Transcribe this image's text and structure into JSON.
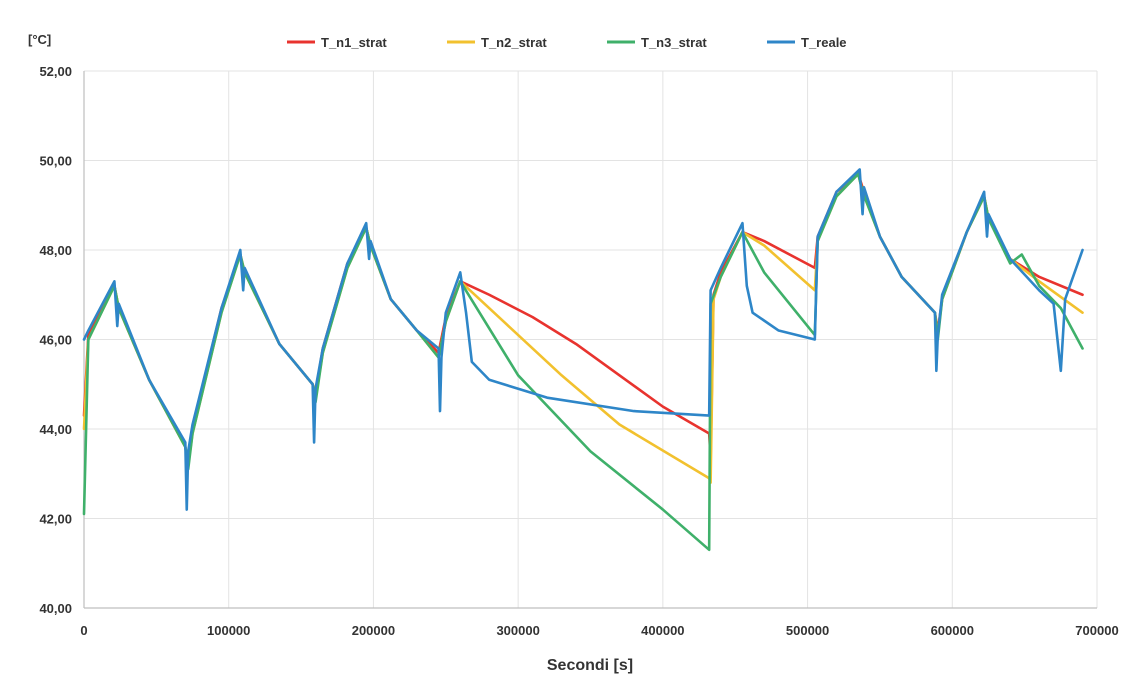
{
  "chart_data": {
    "type": "line",
    "ylabel": "[°C]",
    "xlabel": "Secondi [s]",
    "xlim": [
      0,
      700000
    ],
    "ylim": [
      40,
      52
    ],
    "x_ticks": [
      0,
      100000,
      200000,
      300000,
      400000,
      500000,
      600000,
      700000
    ],
    "x_tick_labels": [
      "0",
      "100000",
      "200000",
      "300000",
      "400000",
      "500000",
      "600000",
      "700000"
    ],
    "y_ticks": [
      40,
      42,
      44,
      46,
      48,
      50,
      52
    ],
    "y_tick_labels": [
      "40,00",
      "42,00",
      "44,00",
      "46,00",
      "48,00",
      "50,00",
      "52,00"
    ],
    "grid": true,
    "legend_position": "top",
    "series": [
      {
        "name": "T_n1_strat",
        "color": "#e8332e",
        "points": [
          [
            0,
            44.3
          ],
          [
            3000,
            46.1
          ],
          [
            21000,
            47.2
          ],
          [
            24000,
            46.7
          ],
          [
            45000,
            45.1
          ],
          [
            70000,
            43.6
          ],
          [
            72000,
            43.3
          ],
          [
            75000,
            44.0
          ],
          [
            95000,
            46.7
          ],
          [
            108000,
            47.9
          ],
          [
            111000,
            47.5
          ],
          [
            135000,
            45.9
          ],
          [
            158000,
            45.0
          ],
          [
            160000,
            44.8
          ],
          [
            165000,
            45.8
          ],
          [
            182000,
            47.7
          ],
          [
            195000,
            48.5
          ],
          [
            198000,
            48.1
          ],
          [
            212000,
            46.9
          ],
          [
            230000,
            46.2
          ],
          [
            245000,
            45.7
          ],
          [
            250000,
            46.5
          ],
          [
            260000,
            47.3
          ],
          [
            280000,
            47.0
          ],
          [
            310000,
            46.5
          ],
          [
            340000,
            45.9
          ],
          [
            370000,
            45.2
          ],
          [
            400000,
            44.5
          ],
          [
            432000,
            43.9
          ],
          [
            433000,
            43.3
          ],
          [
            435000,
            47.0
          ],
          [
            440000,
            47.5
          ],
          [
            455000,
            48.4
          ],
          [
            470000,
            48.2
          ],
          [
            505000,
            47.6
          ],
          [
            507000,
            48.3
          ],
          [
            520000,
            49.3
          ],
          [
            535000,
            49.7
          ],
          [
            538000,
            49.4
          ],
          [
            550000,
            48.3
          ],
          [
            565000,
            47.4
          ],
          [
            588000,
            46.6
          ],
          [
            590000,
            46.2
          ],
          [
            593000,
            46.9
          ],
          [
            610000,
            48.4
          ],
          [
            622000,
            49.2
          ],
          [
            625000,
            48.7
          ],
          [
            640000,
            47.8
          ],
          [
            660000,
            47.4
          ],
          [
            690000,
            47.0
          ]
        ]
      },
      {
        "name": "T_n2_strat",
        "color": "#f2c12e",
        "points": [
          [
            0,
            44.0
          ],
          [
            3000,
            46.0
          ],
          [
            21000,
            47.2
          ],
          [
            24000,
            46.7
          ],
          [
            45000,
            45.1
          ],
          [
            70000,
            43.6
          ],
          [
            72000,
            43.2
          ],
          [
            75000,
            43.9
          ],
          [
            95000,
            46.6
          ],
          [
            108000,
            47.9
          ],
          [
            111000,
            47.5
          ],
          [
            135000,
            45.9
          ],
          [
            158000,
            45.0
          ],
          [
            160000,
            44.7
          ],
          [
            165000,
            45.7
          ],
          [
            182000,
            47.6
          ],
          [
            195000,
            48.5
          ],
          [
            198000,
            48.1
          ],
          [
            212000,
            46.9
          ],
          [
            230000,
            46.2
          ],
          [
            245000,
            45.6
          ],
          [
            250000,
            46.4
          ],
          [
            260000,
            47.3
          ],
          [
            290000,
            46.4
          ],
          [
            330000,
            45.2
          ],
          [
            370000,
            44.1
          ],
          [
            432000,
            42.9
          ],
          [
            433000,
            42.8
          ],
          [
            435000,
            46.9
          ],
          [
            440000,
            47.4
          ],
          [
            455000,
            48.4
          ],
          [
            470000,
            48.1
          ],
          [
            505000,
            47.1
          ],
          [
            507000,
            48.2
          ],
          [
            520000,
            49.2
          ],
          [
            535000,
            49.7
          ],
          [
            538000,
            49.3
          ],
          [
            550000,
            48.3
          ],
          [
            565000,
            47.4
          ],
          [
            588000,
            46.6
          ],
          [
            590000,
            46.1
          ],
          [
            593000,
            46.9
          ],
          [
            610000,
            48.4
          ],
          [
            622000,
            49.2
          ],
          [
            625000,
            48.7
          ],
          [
            640000,
            47.8
          ],
          [
            660000,
            47.3
          ],
          [
            690000,
            46.6
          ]
        ]
      },
      {
        "name": "T_n3_strat",
        "color": "#3fb06a",
        "points": [
          [
            0,
            42.1
          ],
          [
            3000,
            46.0
          ],
          [
            21000,
            47.2
          ],
          [
            24000,
            46.7
          ],
          [
            45000,
            45.1
          ],
          [
            70000,
            43.6
          ],
          [
            72000,
            43.1
          ],
          [
            75000,
            43.9
          ],
          [
            95000,
            46.6
          ],
          [
            108000,
            47.9
          ],
          [
            111000,
            47.5
          ],
          [
            135000,
            45.9
          ],
          [
            158000,
            45.0
          ],
          [
            160000,
            44.6
          ],
          [
            165000,
            45.7
          ],
          [
            182000,
            47.6
          ],
          [
            195000,
            48.5
          ],
          [
            198000,
            48.1
          ],
          [
            212000,
            46.9
          ],
          [
            230000,
            46.2
          ],
          [
            245000,
            45.6
          ],
          [
            250000,
            46.4
          ],
          [
            260000,
            47.3
          ],
          [
            300000,
            45.2
          ],
          [
            350000,
            43.5
          ],
          [
            400000,
            42.2
          ],
          [
            432000,
            41.3
          ],
          [
            433000,
            46.8
          ],
          [
            440000,
            47.4
          ],
          [
            455000,
            48.4
          ],
          [
            470000,
            47.5
          ],
          [
            505000,
            46.1
          ],
          [
            507000,
            48.2
          ],
          [
            520000,
            49.2
          ],
          [
            535000,
            49.7
          ],
          [
            538000,
            49.3
          ],
          [
            550000,
            48.3
          ],
          [
            565000,
            47.4
          ],
          [
            588000,
            46.6
          ],
          [
            590000,
            46.0
          ],
          [
            593000,
            46.9
          ],
          [
            610000,
            48.4
          ],
          [
            622000,
            49.2
          ],
          [
            625000,
            48.7
          ],
          [
            640000,
            47.7
          ],
          [
            648000,
            47.9
          ],
          [
            660000,
            47.2
          ],
          [
            675000,
            46.7
          ],
          [
            690000,
            45.8
          ]
        ]
      },
      {
        "name": "T_reale",
        "color": "#2e86c8",
        "points": [
          [
            0,
            46.0
          ],
          [
            3000,
            46.2
          ],
          [
            21000,
            47.3
          ],
          [
            23000,
            46.3
          ],
          [
            24000,
            46.8
          ],
          [
            45000,
            45.1
          ],
          [
            70000,
            43.7
          ],
          [
            71000,
            42.2
          ],
          [
            72000,
            43.5
          ],
          [
            75000,
            44.1
          ],
          [
            95000,
            46.7
          ],
          [
            108000,
            48.0
          ],
          [
            110000,
            47.1
          ],
          [
            111000,
            47.6
          ],
          [
            135000,
            45.9
          ],
          [
            158000,
            45.0
          ],
          [
            159000,
            43.7
          ],
          [
            160000,
            44.9
          ],
          [
            165000,
            45.8
          ],
          [
            182000,
            47.7
          ],
          [
            195000,
            48.6
          ],
          [
            197000,
            47.8
          ],
          [
            198000,
            48.2
          ],
          [
            212000,
            46.9
          ],
          [
            230000,
            46.2
          ],
          [
            245000,
            45.8
          ],
          [
            246000,
            44.4
          ],
          [
            247000,
            45.6
          ],
          [
            250000,
            46.6
          ],
          [
            260000,
            47.5
          ],
          [
            264000,
            46.6
          ],
          [
            268000,
            45.5
          ],
          [
            280000,
            45.1
          ],
          [
            320000,
            44.7
          ],
          [
            380000,
            44.4
          ],
          [
            432000,
            44.3
          ],
          [
            433000,
            47.1
          ],
          [
            440000,
            47.6
          ],
          [
            455000,
            48.6
          ],
          [
            458000,
            47.2
          ],
          [
            462000,
            46.6
          ],
          [
            480000,
            46.2
          ],
          [
            505000,
            46.0
          ],
          [
            507000,
            48.3
          ],
          [
            520000,
            49.3
          ],
          [
            536000,
            49.8
          ],
          [
            538000,
            48.8
          ],
          [
            539000,
            49.4
          ],
          [
            550000,
            48.3
          ],
          [
            565000,
            47.4
          ],
          [
            588000,
            46.6
          ],
          [
            589000,
            45.3
          ],
          [
            590000,
            46.1
          ],
          [
            593000,
            47.0
          ],
          [
            610000,
            48.4
          ],
          [
            622000,
            49.3
          ],
          [
            624000,
            48.3
          ],
          [
            625000,
            48.8
          ],
          [
            640000,
            47.8
          ],
          [
            660000,
            47.1
          ],
          [
            670000,
            46.8
          ],
          [
            675000,
            45.3
          ],
          [
            678000,
            46.9
          ],
          [
            690000,
            48.0
          ]
        ]
      }
    ]
  }
}
